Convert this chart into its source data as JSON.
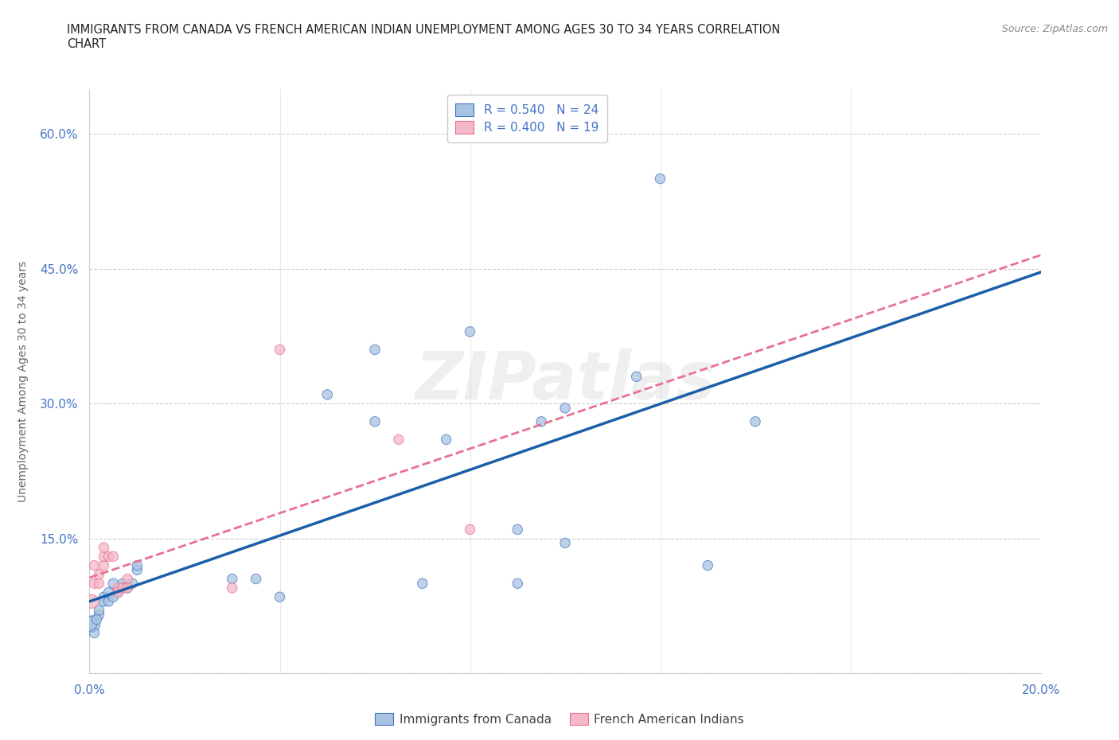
{
  "title_line1": "IMMIGRANTS FROM CANADA VS FRENCH AMERICAN INDIAN UNEMPLOYMENT AMONG AGES 30 TO 34 YEARS CORRELATION",
  "title_line2": "CHART",
  "source": "Source: ZipAtlas.com",
  "ylabel": "Unemployment Among Ages 30 to 34 years",
  "watermark": "ZIPatlas",
  "xlim": [
    0.0,
    0.2
  ],
  "ylim": [
    0.0,
    0.65
  ],
  "xticks": [
    0.0,
    0.04,
    0.08,
    0.12,
    0.16,
    0.2
  ],
  "yticks": [
    0.0,
    0.15,
    0.3,
    0.45,
    0.6
  ],
  "blue_R": 0.54,
  "blue_N": 24,
  "pink_R": 0.4,
  "pink_N": 19,
  "blue_fill": "#a8c4e0",
  "pink_fill": "#f4b8c8",
  "blue_edge": "#4472c4",
  "pink_edge": "#e87090",
  "blue_line": "#1a5fa8",
  "pink_line": "#e87090",
  "grid_color": "#cccccc",
  "bg_color": "#ffffff",
  "title_color": "#222222",
  "tick_color": "#4472c4",
  "ylabel_color": "#666666",
  "legend_label_color": "#4472c4",
  "bottom_legend_color": "#444444",
  "source_color": "#888888",
  "blue_scatter_x": [
    0.0005,
    0.001,
    0.002,
    0.002,
    0.003,
    0.003,
    0.004,
    0.004,
    0.005,
    0.005,
    0.006,
    0.007,
    0.007,
    0.008,
    0.009,
    0.01,
    0.01,
    0.03,
    0.035,
    0.04,
    0.05,
    0.06,
    0.06,
    0.07,
    0.075,
    0.08,
    0.09,
    0.09,
    0.095,
    0.1,
    0.1,
    0.115,
    0.12,
    0.13,
    0.14,
    0.0,
    0.0015
  ],
  "blue_scatter_y": [
    0.055,
    0.045,
    0.065,
    0.07,
    0.085,
    0.08,
    0.08,
    0.09,
    0.1,
    0.085,
    0.09,
    0.1,
    0.095,
    0.095,
    0.1,
    0.115,
    0.12,
    0.105,
    0.105,
    0.085,
    0.31,
    0.36,
    0.28,
    0.1,
    0.26,
    0.38,
    0.16,
    0.1,
    0.28,
    0.295,
    0.145,
    0.33,
    0.55,
    0.12,
    0.28,
    0.055,
    0.06
  ],
  "blue_scatter_s": [
    220,
    80,
    80,
    80,
    80,
    80,
    80,
    80,
    80,
    80,
    80,
    80,
    80,
    80,
    80,
    80,
    80,
    80,
    80,
    80,
    80,
    80,
    80,
    80,
    80,
    80,
    80,
    80,
    80,
    80,
    80,
    80,
    80,
    80,
    80,
    180,
    80
  ],
  "pink_scatter_x": [
    0.001,
    0.001,
    0.002,
    0.002,
    0.003,
    0.003,
    0.003,
    0.004,
    0.005,
    0.006,
    0.006,
    0.007,
    0.008,
    0.008,
    0.03,
    0.04,
    0.065,
    0.08,
    0.0005
  ],
  "pink_scatter_y": [
    0.1,
    0.12,
    0.1,
    0.11,
    0.12,
    0.13,
    0.14,
    0.13,
    0.13,
    0.095,
    0.09,
    0.095,
    0.105,
    0.095,
    0.095,
    0.36,
    0.26,
    0.16,
    0.08
  ],
  "pink_scatter_s": [
    80,
    80,
    80,
    80,
    80,
    80,
    80,
    80,
    80,
    80,
    80,
    80,
    80,
    80,
    80,
    80,
    80,
    80,
    150
  ]
}
